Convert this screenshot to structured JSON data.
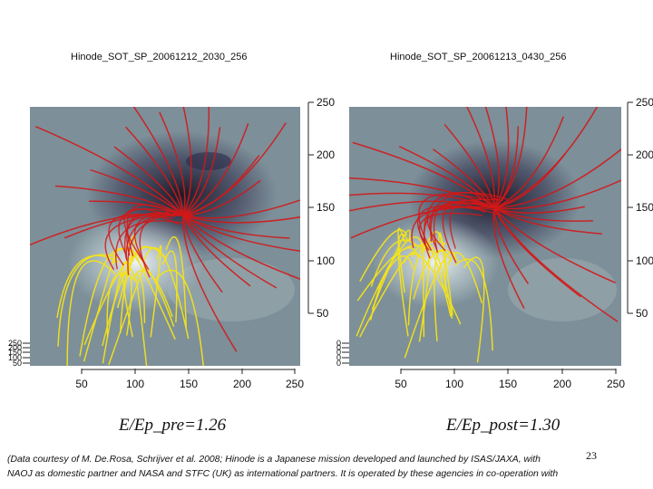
{
  "panels": [
    {
      "title": "Hinode_SOT_SP_20061212_2030_256",
      "x_ticks": [
        "50",
        "100",
        "150",
        "200",
        "250"
      ],
      "y_ticks": [
        "50",
        "100",
        "150",
        "200",
        "250"
      ],
      "left_strip_ticks": [
        "250",
        "200",
        "150",
        "100",
        "50"
      ],
      "caption": "E/Ep_pre=1.26"
    },
    {
      "title": "Hinode_SOT_SP_20061213_0430_256",
      "x_ticks": [
        "50",
        "100",
        "150",
        "200",
        "250"
      ],
      "y_ticks": [
        "50",
        "100",
        "150",
        "200",
        "250"
      ],
      "left_strip_ticks": [
        "0",
        "0",
        "0",
        "0",
        "0"
      ],
      "caption": "E/Ep_post=1.30"
    }
  ],
  "page_number": "23",
  "footer": {
    "line1": "(Data courtesy of M. De.Rosa, Schrijver et al. 2008; Hinode is a Japanese mission developed and launched by ISAS/JAXA, with",
    "line2": "NAOJ as domestic partner and NASA and STFC (UK) as international partners. It is operated by these agencies in co-operation with"
  },
  "colors": {
    "background": "#7d8f99",
    "negative_polarity": "#15121f",
    "positive_polarity": "#eef3f2",
    "open_field_lines": "#d11818",
    "closed_field_lines": "#f2e31c"
  }
}
